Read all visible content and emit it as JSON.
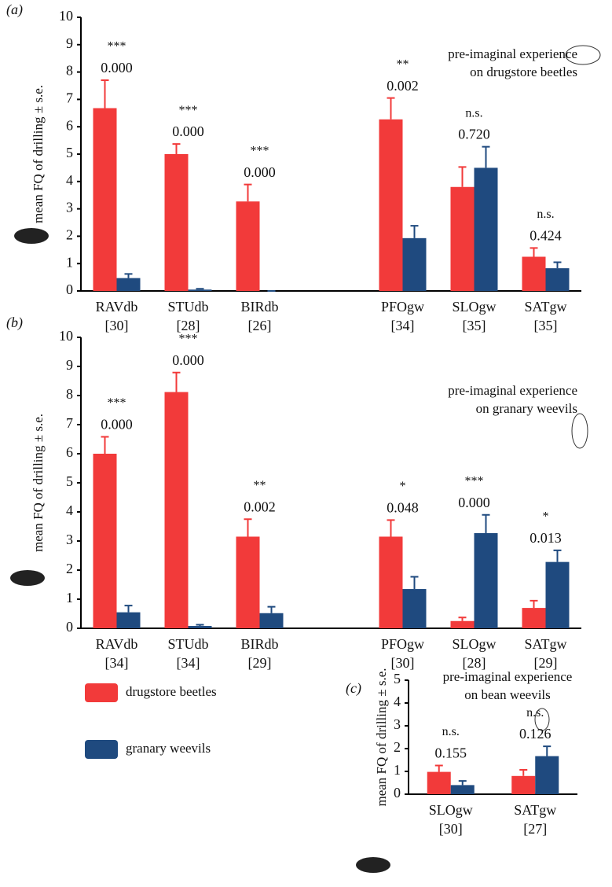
{
  "chart_data": [
    {
      "type": "bar",
      "panel_label": "(a)",
      "y_label": "mean FQ of drilling ± s.e.",
      "note": [
        "pre-imaginal experience",
        "on drugstore beetles"
      ],
      "ylim": [
        0,
        10
      ],
      "yticks": [
        0,
        1,
        2,
        3,
        4,
        5,
        6,
        7,
        8,
        9,
        10
      ],
      "categories": [
        "RAVdb",
        "STUdb",
        "BIRdb",
        null,
        "PFOgw",
        "SLOgw",
        "SATgw"
      ],
      "sample_sizes": [
        "[30]",
        "[28]",
        "[26]",
        null,
        "[34]",
        "[35]",
        "[35]"
      ],
      "category_colors": [
        "#e8383d",
        "#e8383d",
        "#e8383d",
        null,
        "#1f4a7f",
        "#1f4a7f",
        "#1f4a7f"
      ],
      "stars": [
        "***",
        "***",
        "***",
        null,
        "**",
        "n.s.",
        "n.s."
      ],
      "p_values": [
        "0.000",
        "0.000",
        "0.000",
        null,
        "0.002",
        "0.720",
        "0.424"
      ],
      "series": [
        {
          "name": "drugstore beetles",
          "color": "#f23a3a",
          "values": [
            6.68,
            5.0,
            3.27,
            null,
            6.27,
            3.8,
            1.25
          ],
          "errors": [
            1.02,
            0.37,
            0.62,
            null,
            0.78,
            0.73,
            0.32
          ]
        },
        {
          "name": "granary weevils",
          "color": "#1f4a7f",
          "values": [
            0.47,
            0.05,
            0,
            null,
            1.93,
            4.5,
            0.83
          ],
          "errors": [
            0.15,
            0.03,
            0,
            null,
            0.45,
            0.77,
            0.22
          ]
        }
      ]
    },
    {
      "type": "bar",
      "panel_label": "(b)",
      "y_label": "mean FQ of drilling ± s.e.",
      "note": [
        "pre-imaginal experience",
        "on granary weevils"
      ],
      "ylim": [
        0,
        10
      ],
      "yticks": [
        0,
        1,
        2,
        3,
        4,
        5,
        6,
        7,
        8,
        9,
        10
      ],
      "categories": [
        "RAVdb",
        "STUdb",
        "BIRdb",
        null,
        "PFOgw",
        "SLOgw",
        "SATgw"
      ],
      "sample_sizes": [
        "[34]",
        "[34]",
        "[29]",
        null,
        "[30]",
        "[28]",
        "[29]"
      ],
      "category_colors": [
        "#e8383d",
        "#e8383d",
        "#e8383d",
        null,
        "#1f4a7f",
        "#1f4a7f",
        "#1f4a7f"
      ],
      "stars": [
        "***",
        "***",
        "**",
        null,
        "*",
        "***",
        "*"
      ],
      "p_values": [
        "0.000",
        "0.000",
        "0.002",
        null,
        "0.048",
        "0.000",
        "0.013"
      ],
      "series": [
        {
          "color": "#f23a3a",
          "values": [
            6.0,
            8.12,
            3.15,
            null,
            3.15,
            0.25,
            0.7
          ],
          "errors": [
            0.58,
            0.67,
            0.6,
            null,
            0.57,
            0.12,
            0.25
          ]
        },
        {
          "color": "#1f4a7f",
          "values": [
            0.55,
            0.08,
            0.52,
            null,
            1.35,
            3.27,
            2.28
          ],
          "errors": [
            0.23,
            0.04,
            0.22,
            null,
            0.42,
            0.63,
            0.4
          ]
        }
      ]
    },
    {
      "type": "bar",
      "panel_label": "(c)",
      "y_label": "mean FQ of drilling ± s.e.",
      "note": [
        "pre-imaginal experience",
        "on bean weevils"
      ],
      "ylim": [
        0,
        5
      ],
      "yticks": [
        0,
        1,
        2,
        3,
        4,
        5
      ],
      "categories": [
        "SLOgw",
        "SATgw"
      ],
      "sample_sizes": [
        "[30]",
        "[27]"
      ],
      "category_colors": [
        "#1f4a7f",
        "#1f4a7f"
      ],
      "stars": [
        "n.s.",
        "n.s."
      ],
      "p_values": [
        "0.155",
        "0.126"
      ],
      "series": [
        {
          "color": "#f23a3a",
          "values": [
            0.98,
            0.8
          ],
          "errors": [
            0.28,
            0.27
          ]
        },
        {
          "color": "#1f4a7f",
          "values": [
            0.4,
            1.67
          ],
          "errors": [
            0.18,
            0.43
          ]
        }
      ]
    }
  ]
}
